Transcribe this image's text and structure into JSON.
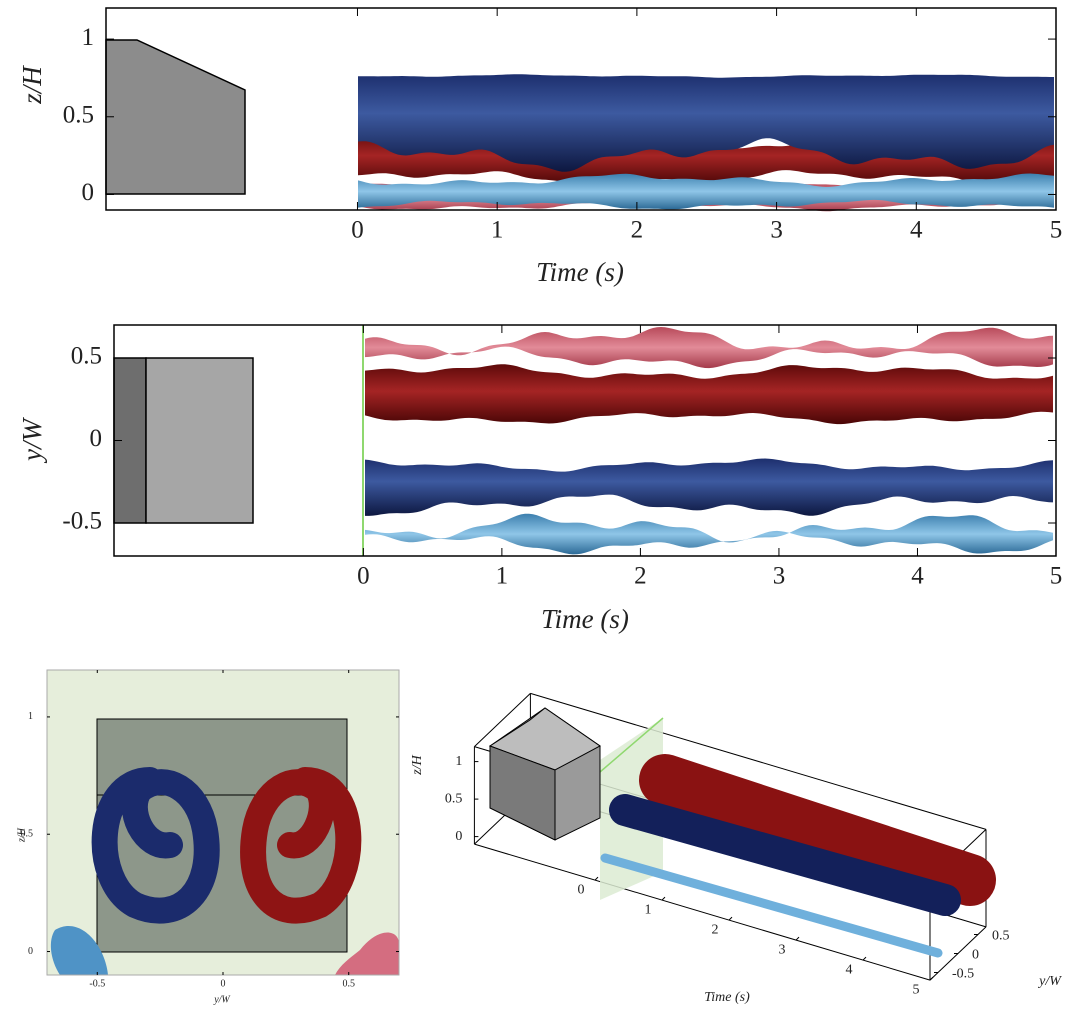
{
  "chart_data": [
    {
      "type": "isosurface",
      "xlabel": "Time (s)",
      "ylabel": "z/H",
      "xlim": [
        -1.8,
        5
      ],
      "ylim": [
        -0.1,
        1.2
      ],
      "xticks": [
        0,
        1,
        2,
        3,
        4,
        5
      ],
      "yticks": [
        0,
        0.5,
        1
      ]
    },
    {
      "type": "isosurface",
      "xlabel": "Time (s)",
      "ylabel": "y/W",
      "xlim": [
        -1.8,
        5
      ],
      "ylim": [
        -0.7,
        0.7
      ],
      "xticks": [
        0,
        1,
        2,
        3,
        4,
        5
      ],
      "yticks": [
        -0.5,
        0,
        0.5
      ]
    },
    {
      "type": "isosurface",
      "xlabel": "y/W",
      "ylabel": "z/H",
      "xlim": [
        -0.7,
        0.7
      ],
      "ylim": [
        -0.1,
        1.2
      ],
      "xticks": [
        -0.5,
        0,
        0.5
      ],
      "yticks": [
        0,
        0.5,
        1
      ]
    },
    {
      "type": "isosurface-3d",
      "xlabel": "Time (s)",
      "ylabel": "y/W",
      "zlabel": "z/H",
      "xlim": [
        -1.8,
        5
      ],
      "ylim": [
        -0.7,
        0.7
      ],
      "zlim": [
        -0.1,
        1.2
      ],
      "xticks": [
        0,
        1,
        2,
        3,
        4,
        5
      ],
      "yticks": [
        -0.5,
        0,
        0.5
      ],
      "zticks": [
        0,
        0.5,
        1
      ]
    }
  ]
}
